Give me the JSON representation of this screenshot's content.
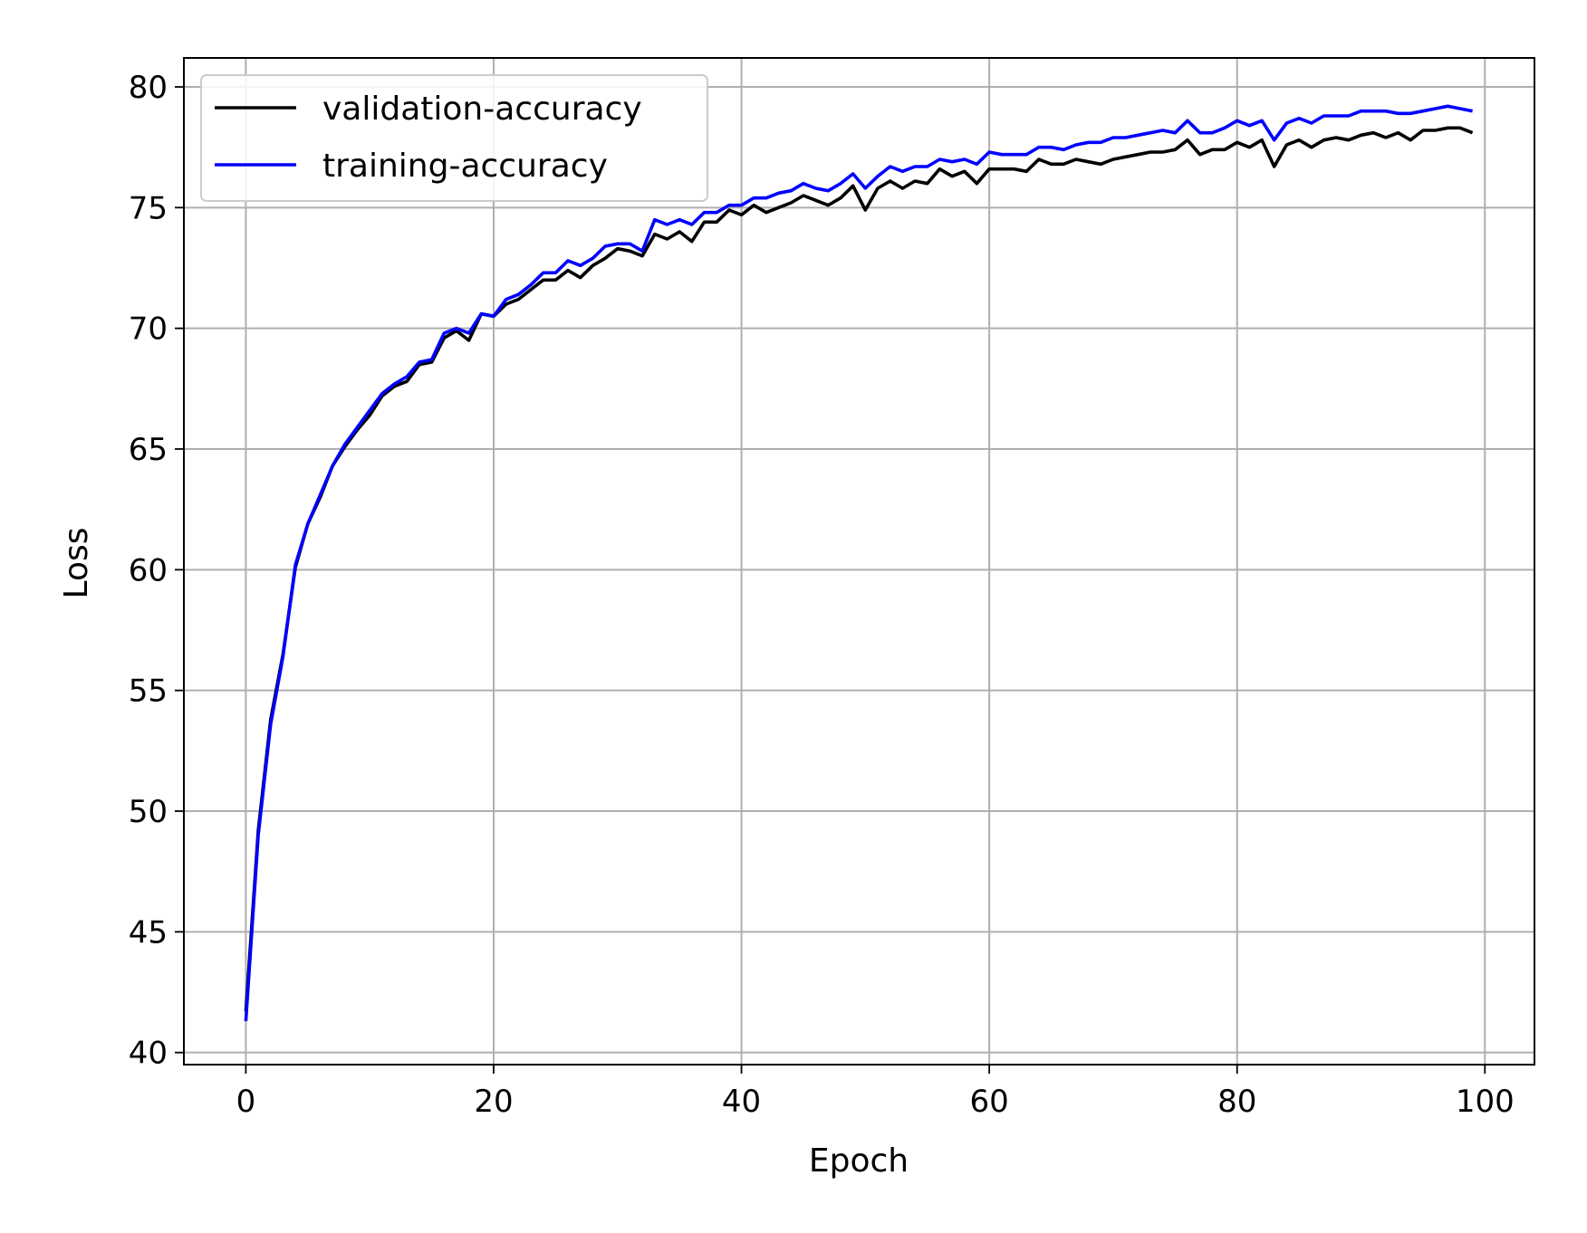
{
  "chart_data": {
    "type": "line",
    "title": "",
    "xlabel": "Epoch",
    "ylabel": "Loss",
    "xlim": [
      -5,
      104
    ],
    "ylim": [
      39.5,
      81.2
    ],
    "xticks": [
      0,
      20,
      40,
      60,
      80,
      100
    ],
    "yticks": [
      40,
      45,
      50,
      55,
      60,
      65,
      70,
      75,
      80
    ],
    "grid": true,
    "legend_position": "top-left",
    "series": [
      {
        "name": "validation-accuracy",
        "color": "#000000",
        "values": [
          41.7,
          49.2,
          53.8,
          56.5,
          60.1,
          61.9,
          63.0,
          64.3,
          65.1,
          65.8,
          66.4,
          67.2,
          67.6,
          67.8,
          68.5,
          68.6,
          69.6,
          69.9,
          69.5,
          70.6,
          70.5,
          71.0,
          71.2,
          71.6,
          72.0,
          72.0,
          72.4,
          72.1,
          72.6,
          72.9,
          73.3,
          73.2,
          73.0,
          73.9,
          73.7,
          74.0,
          73.6,
          74.4,
          74.4,
          74.9,
          74.7,
          75.1,
          74.8,
          75.0,
          75.2,
          75.5,
          75.3,
          75.1,
          75.4,
          75.9,
          74.9,
          75.8,
          76.1,
          75.8,
          76.1,
          76.0,
          76.6,
          76.3,
          76.5,
          76.0,
          76.6,
          76.6,
          76.6,
          76.5,
          77.0,
          76.8,
          76.8,
          77.0,
          76.9,
          76.8,
          77.0,
          77.1,
          77.2,
          77.3,
          77.3,
          77.4,
          77.8,
          77.2,
          77.4,
          77.4,
          77.7,
          77.5,
          77.8,
          76.7,
          77.6,
          77.8,
          77.5,
          77.8,
          77.9,
          77.8,
          78.0,
          78.1,
          77.9,
          78.1,
          77.8,
          78.2,
          78.2,
          78.3,
          78.3,
          78.1
        ]
      },
      {
        "name": "training-accuracy",
        "color": "#0000ff",
        "values": [
          41.3,
          49.0,
          53.6,
          56.4,
          60.2,
          61.9,
          63.1,
          64.3,
          65.2,
          65.9,
          66.6,
          67.3,
          67.7,
          68.0,
          68.6,
          68.7,
          69.8,
          70.0,
          69.8,
          70.6,
          70.5,
          71.2,
          71.4,
          71.8,
          72.3,
          72.3,
          72.8,
          72.6,
          72.9,
          73.4,
          73.5,
          73.5,
          73.2,
          74.5,
          74.3,
          74.5,
          74.3,
          74.8,
          74.8,
          75.1,
          75.1,
          75.4,
          75.4,
          75.6,
          75.7,
          76.0,
          75.8,
          75.7,
          76.0,
          76.4,
          75.8,
          76.3,
          76.7,
          76.5,
          76.7,
          76.7,
          77.0,
          76.9,
          77.0,
          76.8,
          77.3,
          77.2,
          77.2,
          77.2,
          77.5,
          77.5,
          77.4,
          77.6,
          77.7,
          77.7,
          77.9,
          77.9,
          78.0,
          78.1,
          78.2,
          78.1,
          78.6,
          78.1,
          78.1,
          78.3,
          78.6,
          78.4,
          78.6,
          77.8,
          78.5,
          78.7,
          78.5,
          78.8,
          78.8,
          78.8,
          79.0,
          79.0,
          79.0,
          78.9,
          78.9,
          79.0,
          79.1,
          79.2,
          79.1,
          79.0
        ]
      }
    ]
  }
}
